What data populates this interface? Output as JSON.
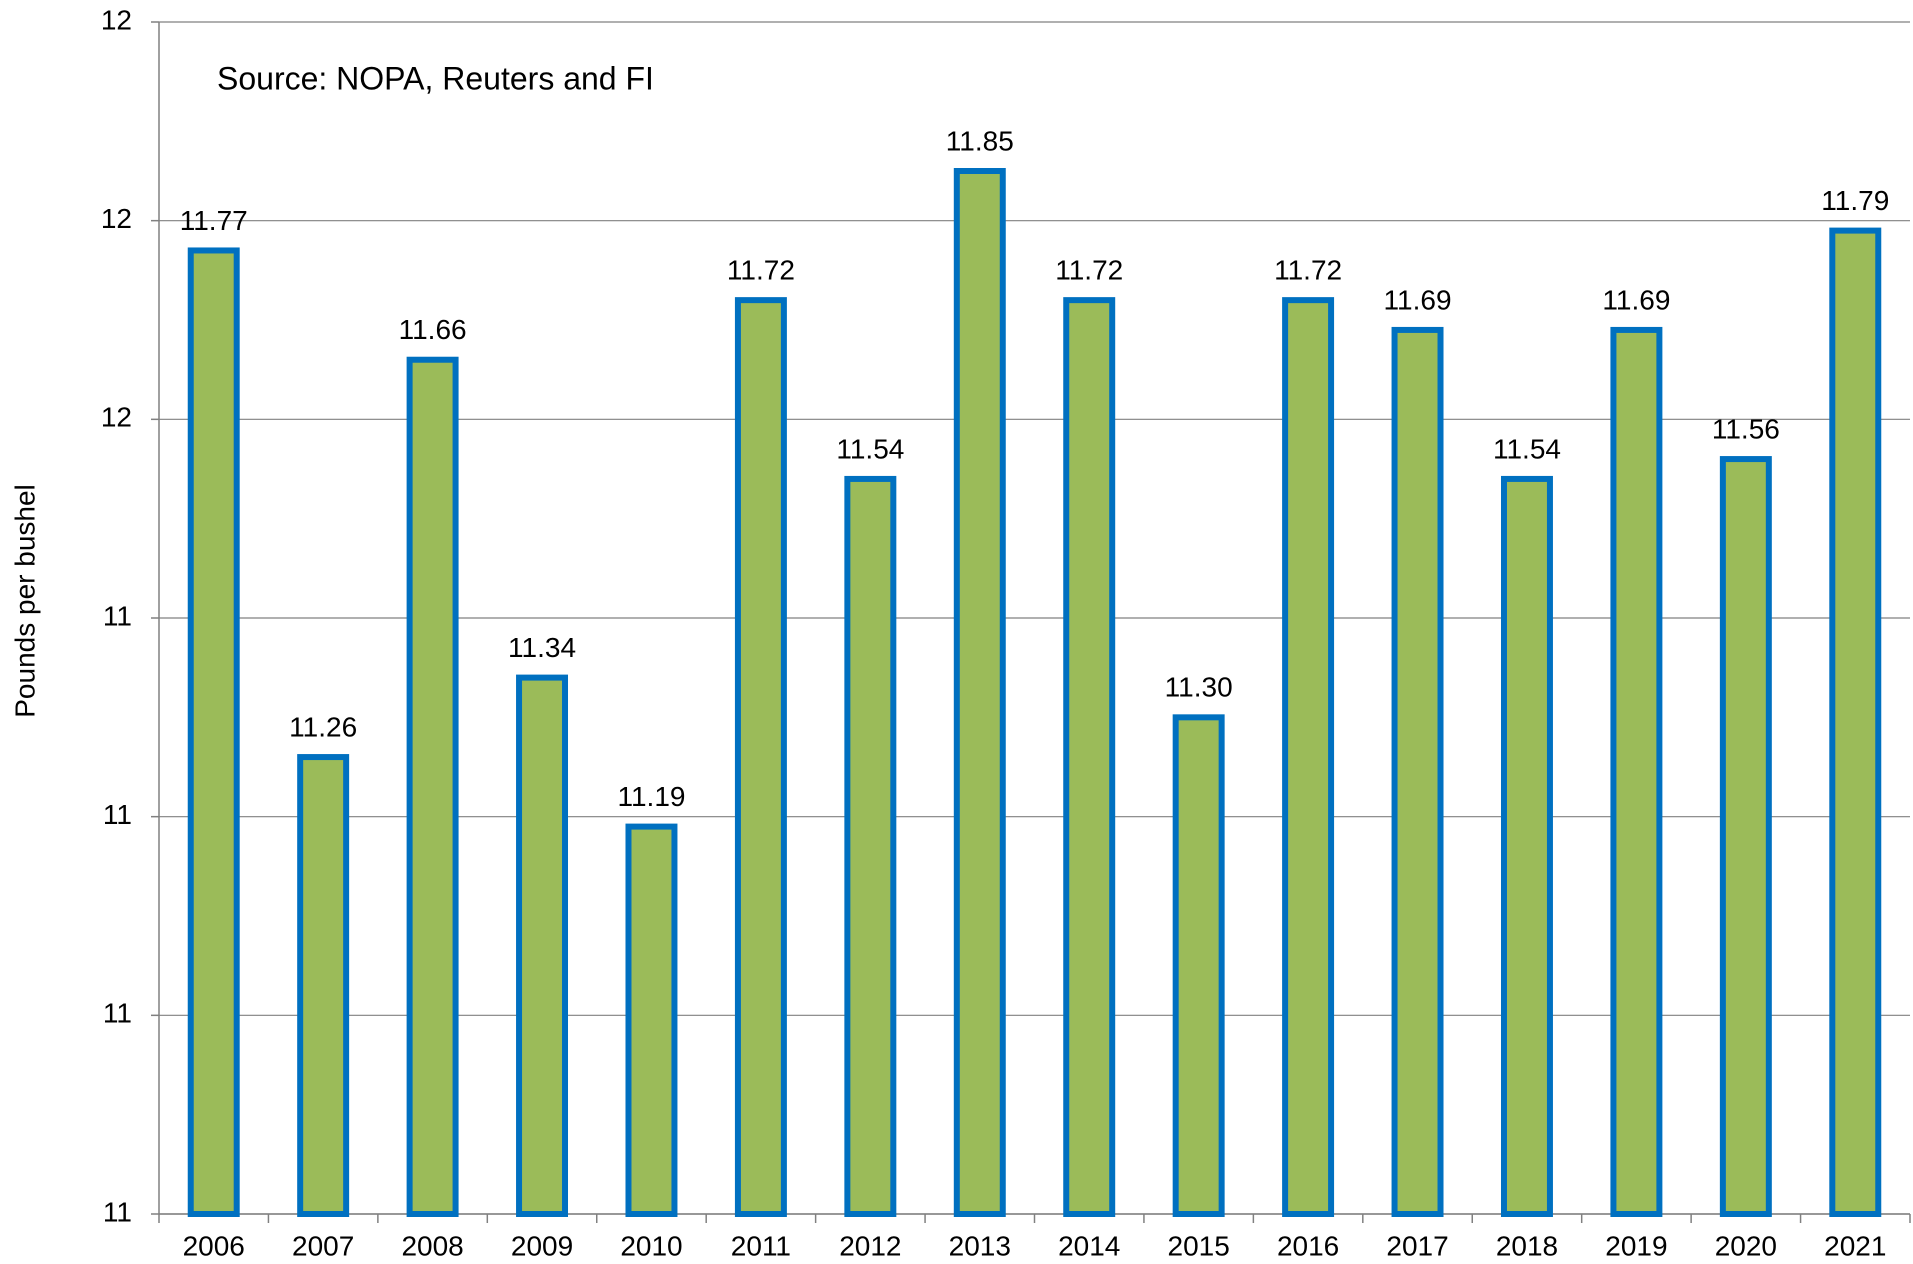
{
  "chart_data": {
    "type": "bar",
    "annotation": "Source: NOPA, Reuters and FI",
    "y_label": "Pounds per bushel",
    "categories": [
      "2006",
      "2007",
      "2008",
      "2009",
      "2010",
      "2011",
      "2012",
      "2013",
      "2014",
      "2015",
      "2016",
      "2017",
      "2018",
      "2019",
      "2020",
      "2021"
    ],
    "values": [
      11.77,
      11.26,
      11.66,
      11.34,
      11.19,
      11.72,
      11.54,
      11.85,
      11.72,
      11.3,
      11.72,
      11.69,
      11.54,
      11.69,
      11.56,
      11.79
    ],
    "value_labels": [
      "11.77",
      "11.26",
      "11.66",
      "11.34",
      "11.19",
      "11.72",
      "11.54",
      "11.85",
      "11.72",
      "11.30",
      "11.72",
      "11.69",
      "11.54",
      "11.69",
      "11.56",
      "11.79"
    ],
    "color": "#9bbb59",
    "edge_color": "#0070c0",
    "ylim": [
      10.8,
      12.0
    ],
    "yticks": [
      {
        "value": 10.8,
        "label": "11"
      },
      11,
      {
        "value": 11.2,
        "label": "11"
      },
      {
        "value": 11.4,
        "label": "11"
      },
      {
        "value": 11.6,
        "label": "12"
      },
      {
        "value": 11.8,
        "label": "12"
      },
      12
    ],
    "grid": true
  }
}
